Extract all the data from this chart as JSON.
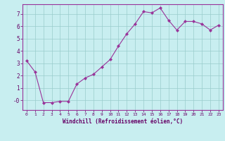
{
  "x": [
    0,
    1,
    2,
    3,
    4,
    5,
    6,
    7,
    8,
    9,
    10,
    11,
    12,
    13,
    14,
    15,
    16,
    17,
    18,
    19,
    20,
    21,
    22,
    23
  ],
  "y": [
    3.2,
    2.3,
    -0.2,
    -0.2,
    -0.1,
    -0.1,
    1.3,
    1.8,
    2.1,
    2.7,
    3.3,
    4.4,
    5.4,
    6.2,
    7.2,
    7.1,
    7.5,
    6.5,
    5.7,
    6.4,
    6.4,
    6.2,
    5.7,
    6.1
  ],
  "line_color": "#993399",
  "marker": "D",
  "marker_size": 2.0,
  "bg_color": "#c8eef0",
  "grid_color": "#99cccc",
  "xlabel": "Windchill (Refroidissement éolien,°C)",
  "xlim": [
    -0.5,
    23.5
  ],
  "ylim": [
    -0.8,
    7.8
  ],
  "ytick_labels": [
    "-0",
    "1",
    "2",
    "3",
    "4",
    "5",
    "6",
    "7"
  ],
  "ytick_vals": [
    0,
    1,
    2,
    3,
    4,
    5,
    6,
    7
  ],
  "axis_color": "#660066",
  "tick_color": "#660066",
  "label_color": "#660066",
  "spine_color": "#993399",
  "xtick_fontsize": 4.5,
  "ytick_fontsize": 5.5,
  "xlabel_fontsize": 5.5
}
